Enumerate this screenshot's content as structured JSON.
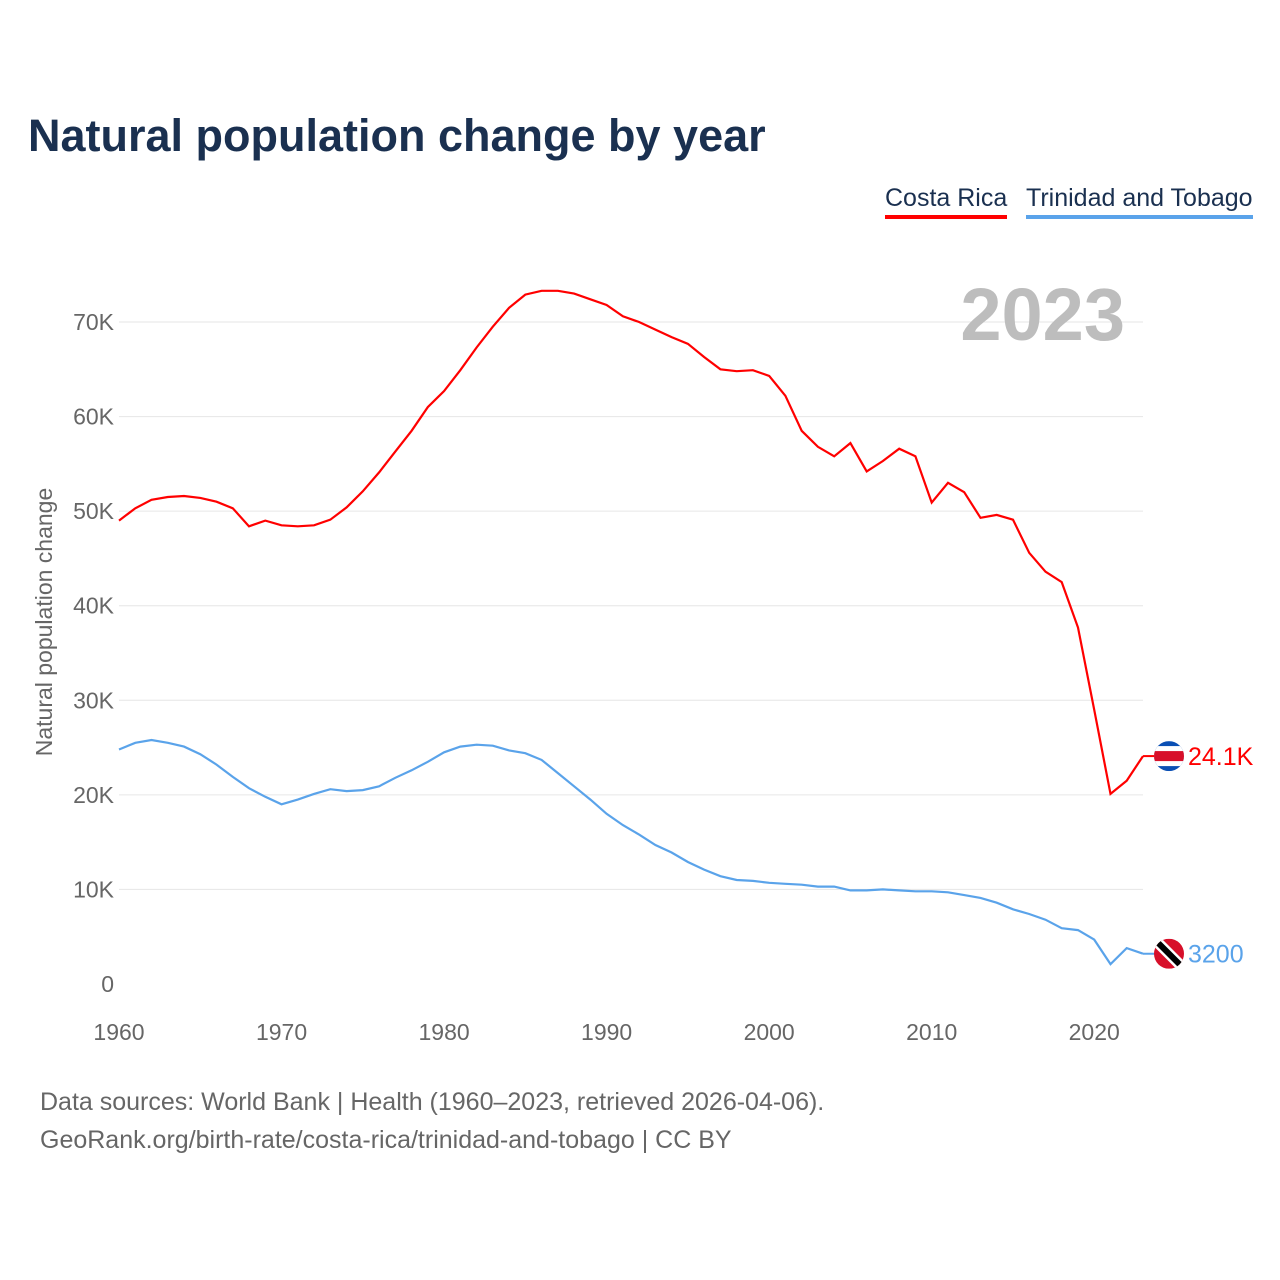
{
  "chart_data": {
    "type": "line",
    "title": "Natural population change by year",
    "ylabel": "Natural population change",
    "xlabel": "",
    "ylim": [
      0,
      75000
    ],
    "xlim": [
      1960,
      2023
    ],
    "grid": true,
    "legend_position": "top-right",
    "highlight_year": "2023",
    "x_ticks": [
      "1960",
      "1970",
      "1980",
      "1990",
      "2000",
      "2010",
      "2020"
    ],
    "y_ticks": [
      {
        "value": 0,
        "label": "0"
      },
      {
        "value": 10000,
        "label": "10K"
      },
      {
        "value": 20000,
        "label": "20K"
      },
      {
        "value": 30000,
        "label": "30K"
      },
      {
        "value": 40000,
        "label": "40K"
      },
      {
        "value": 50000,
        "label": "50K"
      },
      {
        "value": 60000,
        "label": "60K"
      },
      {
        "value": 70000,
        "label": "70K"
      }
    ],
    "x_start": 1960,
    "series": [
      {
        "name": "Costa Rica",
        "color": "#ff0000",
        "end_label": "24.1K",
        "flag": "costa-rica-flag",
        "values": [
          49.0,
          50.3,
          51.2,
          51.5,
          51.6,
          51.4,
          51.0,
          50.3,
          48.4,
          49.0,
          48.5,
          48.4,
          48.5,
          49.1,
          50.4,
          52.1,
          54.1,
          56.3,
          58.5,
          61.0,
          62.7,
          64.9,
          67.3,
          69.5,
          71.5,
          72.9,
          73.3,
          73.3,
          73.0,
          72.4,
          71.8,
          70.6,
          70.0,
          69.2,
          68.4,
          67.7,
          66.3,
          65.0,
          64.8,
          64.9,
          64.3,
          62.2,
          58.5,
          56.8,
          55.8,
          57.2,
          54.2,
          55.3,
          56.6,
          55.8,
          50.9,
          53.0,
          52.0,
          49.3,
          49.6,
          49.1,
          45.6,
          43.6,
          42.5,
          37.7,
          29.0,
          20.1,
          21.5,
          24.1
        ]
      },
      {
        "name": "Trinidad and Tobago",
        "color": "#5aa3ea",
        "end_label": "3200",
        "flag": "trinidad-and-tobago-flag",
        "values": [
          24.8,
          25.5,
          25.8,
          25.5,
          25.1,
          24.3,
          23.2,
          21.9,
          20.7,
          19.8,
          19.0,
          19.5,
          20.1,
          20.6,
          20.4,
          20.5,
          20.9,
          21.8,
          22.6,
          23.5,
          24.5,
          25.1,
          25.3,
          25.2,
          24.7,
          24.4,
          23.7,
          22.3,
          20.9,
          19.5,
          18.0,
          16.8,
          15.8,
          14.7,
          13.9,
          12.9,
          12.1,
          11.4,
          11.0,
          10.9,
          10.7,
          10.6,
          10.5,
          10.3,
          10.3,
          9.9,
          9.9,
          10.0,
          9.9,
          9.8,
          9.8,
          9.7,
          9.4,
          9.1,
          8.6,
          7.9,
          7.4,
          6.8,
          5.9,
          5.7,
          4.7,
          2.1,
          3.8,
          3.2
        ]
      }
    ],
    "value_unit": "thousands"
  },
  "footer": {
    "line1": "Data sources: World Bank | Health (1960–2023, retrieved 2026-04-06).",
    "line2": "GeoRank.org/birth-rate/costa-rica/trinidad-and-tobago | CC BY"
  }
}
